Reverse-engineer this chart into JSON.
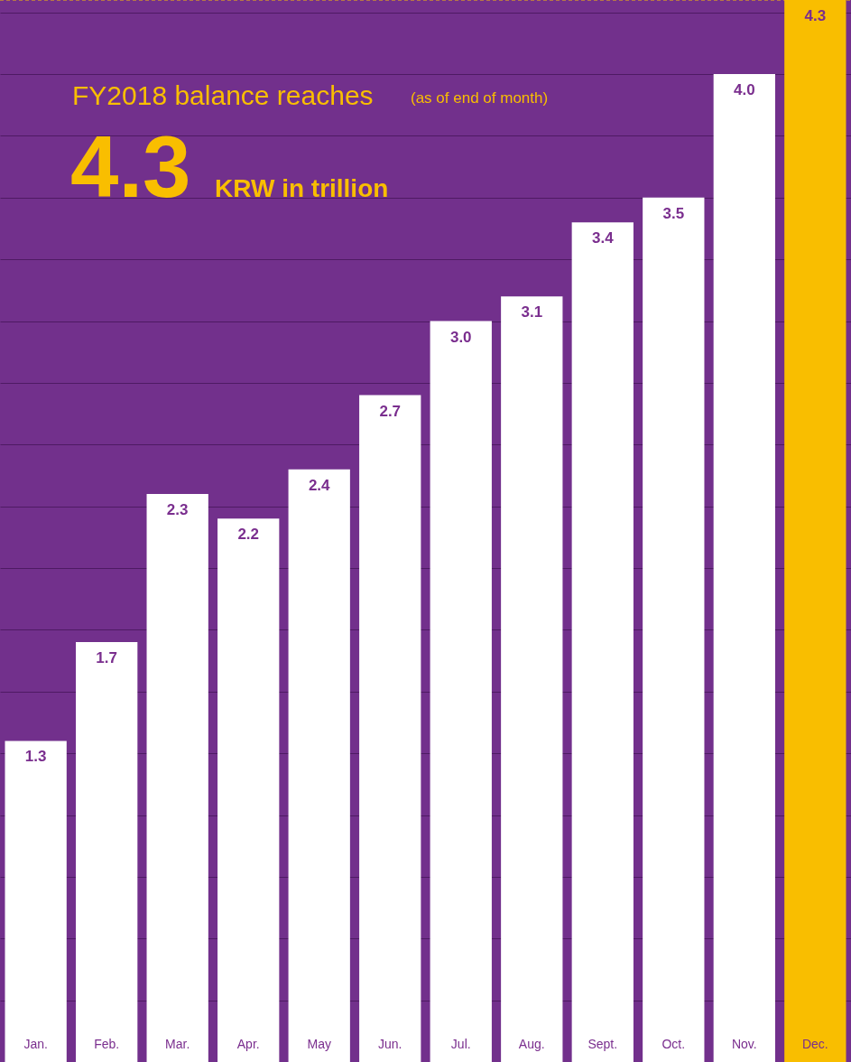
{
  "chart_data": {
    "type": "bar",
    "title": "FY2018 balance reaches",
    "subtitle": "(as of end of month)",
    "annotations": [
      "4.3",
      "KRW in trillion"
    ],
    "categories": [
      "Jan.",
      "Feb.",
      "Mar.",
      "Apr.",
      "May",
      "Jun.",
      "Jul.",
      "Aug.",
      "Sept.",
      "Oct.",
      "Nov.",
      "Dec."
    ],
    "values": [
      1.3,
      1.7,
      2.3,
      2.2,
      2.4,
      2.7,
      3.0,
      3.1,
      3.4,
      3.5,
      4.0,
      4.3
    ],
    "colors": [
      "#ffffff",
      "#ffffff",
      "#ffffff",
      "#ffffff",
      "#ffffff",
      "#ffffff",
      "#ffffff",
      "#ffffff",
      "#ffffff",
      "#ffffff",
      "#ffffff",
      "#f9be00"
    ],
    "value_labels": [
      "1.3",
      "1.7",
      "2.3",
      "2.2",
      "2.4",
      "2.7",
      "3.0",
      "3.1",
      "3.4",
      "3.5",
      "4.0",
      "4.3"
    ],
    "grid": "y",
    "ylim": [
      0,
      4.3
    ],
    "yticks": [
      {
        "value": 0.25,
        "label": null
      },
      {
        "value": 0.5,
        "label": null
      },
      {
        "value": 0.75,
        "label": null
      },
      {
        "value": 1.0,
        "label": null
      },
      {
        "value": 1.25,
        "label": null
      },
      {
        "value": 1.5,
        "label": null
      },
      {
        "value": 1.75,
        "label": null
      },
      {
        "value": 2.0,
        "label": null
      },
      {
        "value": 2.25,
        "label": null
      },
      {
        "value": 2.5,
        "label": null
      },
      {
        "value": 2.75,
        "label": null
      },
      {
        "value": 3.0,
        "label": null
      },
      {
        "value": 3.25,
        "label": null
      },
      {
        "value": 3.5,
        "label": null
      },
      {
        "value": 3.75,
        "label": null
      },
      {
        "value": 4.0,
        "label": null
      },
      {
        "value": 4.25,
        "label": null
      }
    ],
    "ref_lines": [
      {
        "axis": "y",
        "value": 4.3,
        "color": "#f9be00",
        "line_style": "dashed"
      }
    ]
  }
}
